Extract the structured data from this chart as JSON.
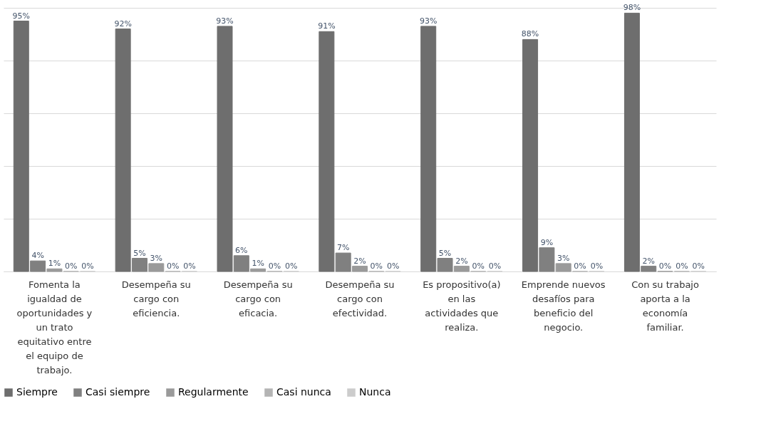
{
  "chart_data": {
    "type": "bar",
    "categories": [
      "Fomenta la igualdad de oportunidades y un trato equitativo entre el equipo de trabajo.",
      "Desempeña su cargo con eficiencia.",
      "Desempeña su cargo con eficacia.",
      "Desempeña su cargo con efectividad.",
      "Es propositivo(a) en las actividades que realiza.",
      "Emprende nuevos desafíos para beneficio del negocio.",
      "Con su trabajo aporta a la economía familiar."
    ],
    "series": [
      {
        "name": "Siempre",
        "color": "#6e6e6e",
        "values": [
          95,
          92,
          93,
          91,
          93,
          88,
          98
        ],
        "value_labels": [
          "95%",
          "92%",
          "93%",
          "91%",
          "93%",
          "88%",
          "98%"
        ]
      },
      {
        "name": "Casi siempre",
        "color": "#808080",
        "values": [
          4,
          5,
          6,
          7,
          5,
          9,
          2
        ],
        "value_labels": [
          "4%",
          "5%",
          "6%",
          "7%",
          "5%",
          "9%",
          "2%"
        ]
      },
      {
        "name": "Regularmente",
        "color": "#9a9a9a",
        "values": [
          1,
          3,
          1,
          2,
          2,
          3,
          0
        ],
        "value_labels": [
          "1%",
          "3%",
          "1%",
          "2%",
          "2%",
          "3%",
          "0%"
        ]
      },
      {
        "name": "Casi nunca",
        "color": "#b4b4b4",
        "values": [
          0,
          0,
          0,
          0,
          0,
          0,
          0
        ],
        "value_labels": [
          "0%",
          "0%",
          "0%",
          "0%",
          "0%",
          "0%",
          "0%"
        ]
      },
      {
        "name": "Nunca",
        "color": "#cccccc",
        "values": [
          0,
          0,
          0,
          0,
          0,
          0,
          0
        ],
        "value_labels": [
          "0%",
          "0%",
          "0%",
          "0%",
          "0%",
          "0%",
          "0%"
        ]
      }
    ],
    "ylim": [
      0,
      100
    ],
    "yticks": [
      0,
      20,
      40,
      60,
      80,
      100
    ],
    "grid": "y",
    "tick_labels": "x",
    "legend": "bottom"
  }
}
